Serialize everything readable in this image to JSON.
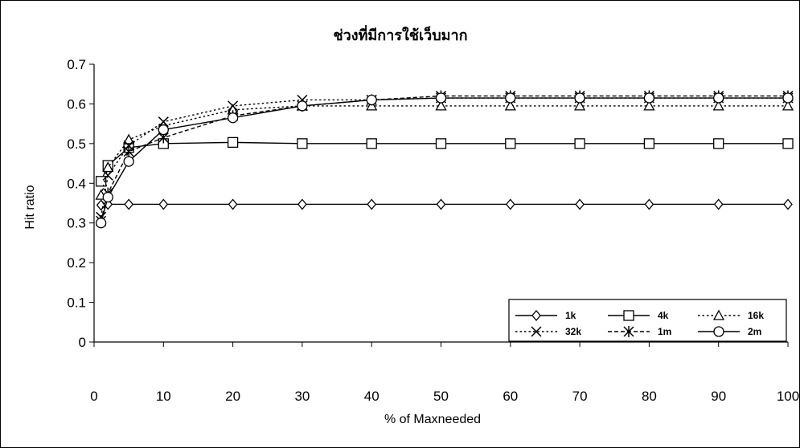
{
  "chart_data": {
    "type": "line",
    "title": "ช่วงที่มีการใช้เว็บมาก",
    "xlabel": "% of Maxneeded",
    "ylabel": "Hit ratio",
    "x": [
      0,
      1,
      2,
      5,
      10,
      20,
      30,
      40,
      50,
      60,
      70,
      80,
      90,
      100
    ],
    "xticks": [
      0,
      10,
      20,
      30,
      40,
      50,
      60,
      70,
      80,
      90,
      100
    ],
    "yticks": [
      0,
      0.1,
      0.2,
      0.3,
      0.4,
      0.5,
      0.6,
      0.7
    ],
    "xlim": [
      0,
      100
    ],
    "ylim": [
      0,
      0.7
    ],
    "grid": false,
    "legend_position": "bottom-right",
    "series": [
      {
        "name": "1k",
        "marker": "diamond",
        "line": "solid",
        "values": [
          null,
          0.345,
          0.347,
          0.347,
          0.347,
          0.347,
          0.347,
          0.347,
          0.347,
          0.347,
          0.347,
          0.347,
          0.347,
          0.347
        ]
      },
      {
        "name": "4k",
        "marker": "square",
        "line": "solid",
        "values": [
          null,
          0.405,
          0.445,
          0.49,
          0.5,
          0.503,
          0.5,
          0.5,
          0.5,
          0.5,
          0.5,
          0.5,
          0.5,
          0.5
        ]
      },
      {
        "name": "16k",
        "marker": "triangle",
        "line": "dotted",
        "values": [
          null,
          0.37,
          0.44,
          0.51,
          0.545,
          0.585,
          0.595,
          0.595,
          0.595,
          0.595,
          0.595,
          0.595,
          0.595,
          0.595
        ]
      },
      {
        "name": "32k",
        "marker": "x",
        "line": "dotted",
        "values": [
          null,
          0.315,
          0.42,
          0.495,
          0.555,
          0.595,
          0.61,
          0.61,
          0.615,
          0.615,
          0.615,
          0.615,
          0.615,
          0.615
        ]
      },
      {
        "name": "1m",
        "marker": "asterisk",
        "line": "dashed",
        "values": [
          null,
          0.305,
          0.375,
          0.48,
          0.515,
          0.57,
          0.595,
          0.61,
          0.62,
          0.62,
          0.62,
          0.62,
          0.62,
          0.62
        ]
      },
      {
        "name": "2m",
        "marker": "circle",
        "line": "solid",
        "values": [
          null,
          0.3,
          0.365,
          0.455,
          0.535,
          0.565,
          0.595,
          0.61,
          0.615,
          0.615,
          0.615,
          0.615,
          0.615,
          0.615
        ]
      }
    ]
  }
}
